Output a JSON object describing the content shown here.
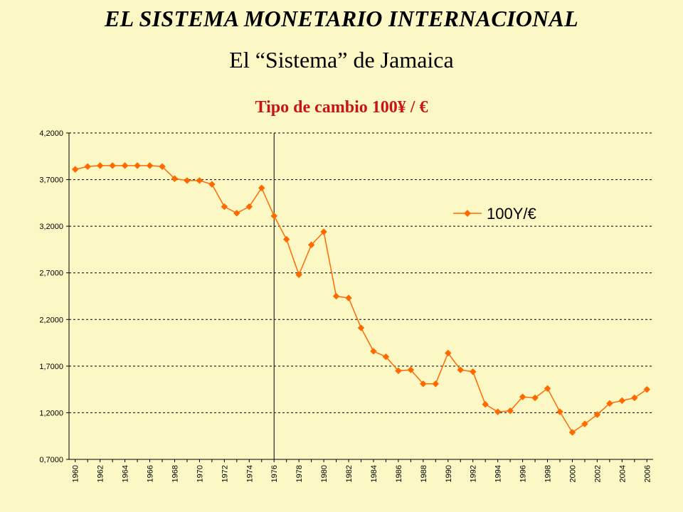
{
  "header": {
    "title": "EL SISTEMA MONETARIO INTERNACIONAL",
    "subtitle": "El “Sistema”  de Jamaica"
  },
  "colors": {
    "background": "#fbf8c6",
    "series": "#ff6a00",
    "title_red": "#c81414"
  },
  "chart_data": {
    "type": "line",
    "title": "Tipo de cambio 100¥ / €",
    "xlabel": "",
    "ylabel": "",
    "ylim": [
      0.7,
      4.2
    ],
    "yticks": [
      "4,2000",
      "3,7000",
      "3,2000",
      "2,7000",
      "2,2000",
      "1,7000",
      "1,2000",
      "0,7000"
    ],
    "yticks_values": [
      4.2,
      3.7,
      3.2,
      2.7,
      2.2,
      1.7,
      1.2,
      0.7
    ],
    "grid": "horizontal-dashed",
    "legend_position": "upper-right",
    "reference_line_x": 1976,
    "xticks": [
      "1960",
      "1962",
      "1964",
      "1966",
      "1968",
      "1970",
      "1972",
      "1974",
      "1976",
      "1978",
      "1980",
      "1982",
      "1984",
      "1986",
      "1988",
      "1990",
      "1992",
      "1994",
      "1996",
      "1998",
      "2000",
      "2002",
      "2004",
      "2006"
    ],
    "series": [
      {
        "name": "100Y/€",
        "x": [
          1960,
          1961,
          1962,
          1963,
          1964,
          1965,
          1966,
          1967,
          1968,
          1969,
          1970,
          1971,
          1972,
          1973,
          1974,
          1975,
          1976,
          1977,
          1978,
          1979,
          1980,
          1981,
          1982,
          1983,
          1984,
          1985,
          1986,
          1987,
          1988,
          1989,
          1990,
          1991,
          1992,
          1993,
          1994,
          1995,
          1996,
          1997,
          1998,
          1999,
          2000,
          2001,
          2002,
          2003,
          2004,
          2005,
          2006
        ],
        "values": [
          3.81,
          3.84,
          3.85,
          3.85,
          3.85,
          3.85,
          3.85,
          3.84,
          3.71,
          3.69,
          3.69,
          3.65,
          3.41,
          3.34,
          3.41,
          3.61,
          3.31,
          3.06,
          2.68,
          3.0,
          3.14,
          2.45,
          2.43,
          2.11,
          1.86,
          1.8,
          1.65,
          1.66,
          1.51,
          1.51,
          1.84,
          1.66,
          1.64,
          1.29,
          1.21,
          1.22,
          1.37,
          1.36,
          1.46,
          1.21,
          0.99,
          1.08,
          1.18,
          1.3,
          1.33,
          1.36,
          1.45
        ]
      }
    ]
  }
}
